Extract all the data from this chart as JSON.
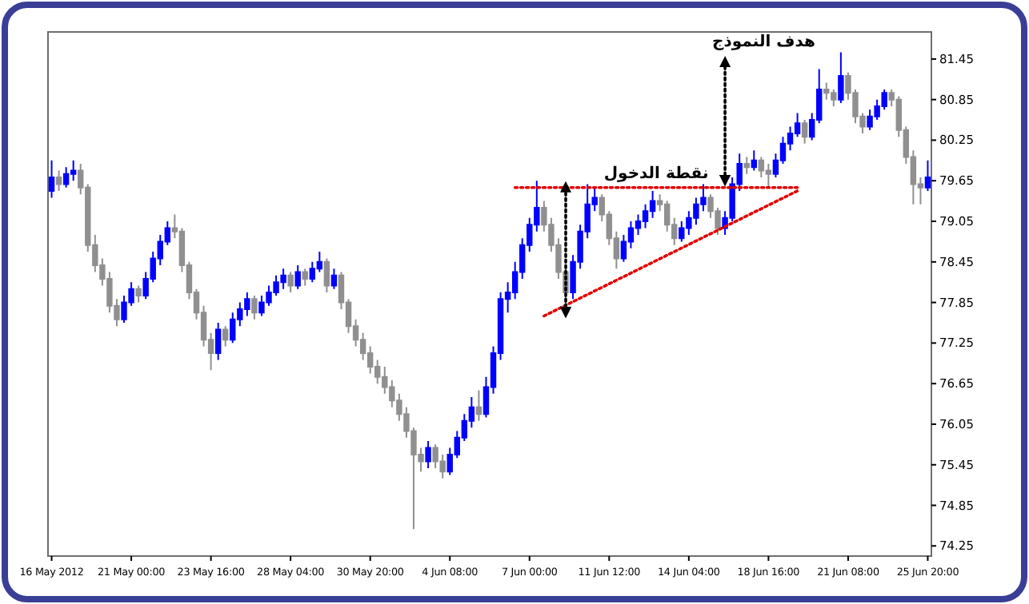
{
  "chart_data": {
    "type": "candlestick",
    "categories": [
      "16 May 2012",
      null,
      null,
      null,
      null,
      null,
      null,
      null,
      null,
      null,
      null,
      "21 May 00:00",
      null,
      null,
      null,
      null,
      null,
      null,
      null,
      null,
      null,
      null,
      "23 May 16:00",
      null,
      null,
      null,
      null,
      null,
      null,
      null,
      null,
      null,
      null,
      "28 May 04:00",
      null,
      null,
      null,
      null,
      null,
      null,
      null,
      null,
      null,
      null,
      "30 May 20:00",
      null,
      null,
      null,
      null,
      null,
      null,
      null,
      null,
      null,
      null,
      "4 Jun 08:00",
      null,
      null,
      null,
      null,
      null,
      null,
      null,
      null,
      null,
      null,
      "7 Jun 00:00",
      null,
      null,
      null,
      null,
      null,
      null,
      null,
      null,
      null,
      null,
      "11 Jun 12:00",
      null,
      null,
      null,
      null,
      null,
      null,
      null,
      null,
      null,
      null,
      "14 Jun 04:00",
      null,
      null,
      null,
      null,
      null,
      null,
      null,
      null,
      null,
      null,
      "18 Jun 16:00",
      null,
      null,
      null,
      null,
      null,
      null,
      null,
      null,
      null,
      null,
      "21 Jun 08:00",
      null,
      null,
      null,
      null,
      null,
      null,
      null,
      null,
      null,
      null,
      "25 Jun 20:00"
    ],
    "ohlc": [
      [
        79.5,
        79.95,
        79.4,
        79.7
      ],
      [
        79.7,
        79.8,
        79.5,
        79.6
      ],
      [
        79.6,
        79.85,
        79.55,
        79.75
      ],
      [
        79.75,
        79.95,
        79.65,
        79.8
      ],
      [
        79.8,
        79.9,
        79.45,
        79.55
      ],
      [
        79.55,
        79.6,
        78.6,
        78.7
      ],
      [
        78.7,
        78.85,
        78.3,
        78.4
      ],
      [
        78.4,
        78.5,
        78.1,
        78.2
      ],
      [
        78.2,
        78.3,
        77.7,
        77.8
      ],
      [
        77.8,
        77.9,
        77.5,
        77.6
      ],
      [
        77.6,
        77.95,
        77.55,
        77.85
      ],
      [
        77.85,
        78.15,
        77.8,
        78.05
      ],
      [
        78.05,
        78.1,
        77.85,
        77.95
      ],
      [
        77.95,
        78.3,
        77.9,
        78.2
      ],
      [
        78.2,
        78.6,
        78.15,
        78.5
      ],
      [
        78.5,
        78.85,
        78.4,
        78.75
      ],
      [
        78.75,
        79.05,
        78.7,
        78.95
      ],
      [
        78.95,
        79.15,
        78.8,
        78.9
      ],
      [
        78.9,
        78.95,
        78.3,
        78.4
      ],
      [
        78.4,
        78.45,
        77.9,
        78.0
      ],
      [
        78.0,
        78.05,
        77.6,
        77.7
      ],
      [
        77.7,
        77.8,
        77.2,
        77.3
      ],
      [
        77.3,
        77.4,
        76.85,
        77.1
      ],
      [
        77.1,
        77.55,
        77.0,
        77.45
      ],
      [
        77.45,
        77.5,
        77.2,
        77.3
      ],
      [
        77.3,
        77.7,
        77.25,
        77.6
      ],
      [
        77.6,
        77.85,
        77.5,
        77.75
      ],
      [
        77.75,
        78.0,
        77.65,
        77.9
      ],
      [
        77.9,
        77.95,
        77.6,
        77.7
      ],
      [
        77.7,
        77.95,
        77.65,
        77.85
      ],
      [
        77.85,
        78.1,
        77.8,
        78.0
      ],
      [
        78.0,
        78.25,
        77.95,
        78.15
      ],
      [
        78.15,
        78.35,
        78.05,
        78.25
      ],
      [
        78.25,
        78.3,
        78.0,
        78.1
      ],
      [
        78.1,
        78.4,
        78.05,
        78.3
      ],
      [
        78.3,
        78.35,
        78.1,
        78.2
      ],
      [
        78.2,
        78.45,
        78.15,
        78.35
      ],
      [
        78.35,
        78.6,
        78.3,
        78.45
      ],
      [
        78.45,
        78.5,
        78.0,
        78.1
      ],
      [
        78.1,
        78.35,
        78.05,
        78.25
      ],
      [
        78.25,
        78.3,
        77.75,
        77.85
      ],
      [
        77.85,
        77.9,
        77.4,
        77.5
      ],
      [
        77.5,
        77.6,
        77.2,
        77.3
      ],
      [
        77.3,
        77.4,
        77.0,
        77.1
      ],
      [
        77.1,
        77.2,
        76.8,
        76.9
      ],
      [
        76.9,
        77.0,
        76.65,
        76.75
      ],
      [
        76.75,
        76.9,
        76.5,
        76.6
      ],
      [
        76.6,
        76.7,
        76.3,
        76.4
      ],
      [
        76.4,
        76.5,
        76.1,
        76.2
      ],
      [
        76.2,
        76.3,
        75.85,
        75.95
      ],
      [
        75.95,
        76.0,
        74.5,
        75.6
      ],
      [
        75.6,
        75.7,
        75.35,
        75.5
      ],
      [
        75.5,
        75.8,
        75.4,
        75.7
      ],
      [
        75.7,
        75.75,
        75.4,
        75.5
      ],
      [
        75.5,
        75.6,
        75.25,
        75.35
      ],
      [
        75.35,
        75.7,
        75.3,
        75.6
      ],
      [
        75.6,
        75.95,
        75.55,
        75.85
      ],
      [
        75.85,
        76.2,
        75.8,
        76.1
      ],
      [
        76.1,
        76.45,
        76.0,
        76.3
      ],
      [
        76.3,
        76.55,
        76.1,
        76.2
      ],
      [
        76.2,
        76.75,
        76.15,
        76.6
      ],
      [
        76.6,
        77.2,
        76.5,
        77.1
      ],
      [
        77.1,
        78.0,
        77.0,
        77.9
      ],
      [
        77.9,
        78.15,
        77.7,
        78.0
      ],
      [
        78.0,
        78.45,
        77.9,
        78.3
      ],
      [
        78.3,
        78.8,
        78.2,
        78.7
      ],
      [
        78.7,
        79.1,
        78.6,
        79.0
      ],
      [
        79.0,
        79.65,
        78.9,
        79.25
      ],
      [
        79.25,
        79.35,
        78.9,
        79.0
      ],
      [
        79.0,
        79.1,
        78.6,
        78.7
      ],
      [
        78.7,
        78.8,
        78.2,
        78.3
      ],
      [
        78.3,
        78.4,
        77.7,
        78.0
      ],
      [
        78.0,
        78.55,
        77.9,
        78.45
      ],
      [
        78.45,
        79.0,
        78.35,
        78.9
      ],
      [
        78.9,
        79.6,
        78.8,
        79.3
      ],
      [
        79.3,
        79.55,
        79.2,
        79.4
      ],
      [
        79.4,
        79.45,
        79.05,
        79.15
      ],
      [
        79.15,
        79.2,
        78.7,
        78.8
      ],
      [
        78.8,
        78.9,
        78.35,
        78.5
      ],
      [
        78.5,
        78.85,
        78.45,
        78.75
      ],
      [
        78.75,
        79.05,
        78.65,
        78.95
      ],
      [
        78.95,
        79.15,
        78.85,
        79.05
      ],
      [
        79.05,
        79.3,
        78.95,
        79.2
      ],
      [
        79.2,
        79.5,
        79.1,
        79.35
      ],
      [
        79.35,
        79.45,
        79.2,
        79.3
      ],
      [
        79.3,
        79.35,
        78.9,
        79.0
      ],
      [
        79.0,
        79.1,
        78.7,
        78.8
      ],
      [
        78.8,
        79.05,
        78.75,
        78.95
      ],
      [
        78.95,
        79.2,
        78.85,
        79.1
      ],
      [
        79.1,
        79.4,
        79.0,
        79.3
      ],
      [
        79.3,
        79.6,
        79.2,
        79.4
      ],
      [
        79.4,
        79.45,
        79.1,
        79.2
      ],
      [
        79.2,
        79.25,
        78.85,
        78.95
      ],
      [
        78.95,
        79.2,
        78.85,
        79.1
      ],
      [
        79.1,
        79.7,
        79.05,
        79.6
      ],
      [
        79.6,
        80.05,
        79.5,
        79.9
      ],
      [
        79.9,
        80.0,
        79.75,
        79.85
      ],
      [
        79.85,
        80.1,
        79.8,
        79.95
      ],
      [
        79.95,
        80.0,
        79.7,
        79.8
      ],
      [
        79.8,
        79.9,
        79.55,
        79.75
      ],
      [
        79.75,
        80.05,
        79.7,
        79.95
      ],
      [
        79.95,
        80.3,
        79.9,
        80.2
      ],
      [
        80.2,
        80.45,
        80.1,
        80.35
      ],
      [
        80.35,
        80.65,
        80.3,
        80.5
      ],
      [
        80.5,
        80.55,
        80.2,
        80.3
      ],
      [
        80.3,
        80.65,
        80.25,
        80.55
      ],
      [
        80.55,
        81.3,
        80.5,
        81.0
      ],
      [
        81.0,
        81.1,
        80.85,
        80.95
      ],
      [
        80.95,
        81.0,
        80.75,
        80.85
      ],
      [
        80.85,
        81.55,
        80.8,
        81.2
      ],
      [
        81.2,
        81.25,
        80.85,
        80.95
      ],
      [
        80.95,
        81.0,
        80.5,
        80.6
      ],
      [
        80.6,
        80.65,
        80.35,
        80.45
      ],
      [
        80.45,
        80.7,
        80.4,
        80.6
      ],
      [
        80.6,
        80.85,
        80.55,
        80.75
      ],
      [
        80.75,
        81.0,
        80.7,
        80.95
      ],
      [
        80.95,
        81.0,
        80.75,
        80.85
      ],
      [
        80.85,
        80.9,
        80.3,
        80.4
      ],
      [
        80.4,
        80.45,
        79.9,
        80.0
      ],
      [
        80.0,
        80.1,
        79.3,
        79.6
      ],
      [
        79.6,
        79.7,
        79.3,
        79.55
      ],
      [
        79.55,
        79.95,
        79.5,
        79.7
      ]
    ],
    "colors": [
      "#0000ff",
      "#909090",
      "#0000ff",
      "#0000ff",
      "#909090",
      "#909090",
      "#909090",
      "#909090",
      "#909090",
      "#909090",
      "#0000ff",
      "#0000ff",
      "#909090",
      "#0000ff",
      "#0000ff",
      "#0000ff",
      "#0000ff",
      "#909090",
      "#909090",
      "#909090",
      "#909090",
      "#909090",
      "#909090",
      "#0000ff",
      "#909090",
      "#0000ff",
      "#0000ff",
      "#0000ff",
      "#909090",
      "#0000ff",
      "#0000ff",
      "#0000ff",
      "#0000ff",
      "#909090",
      "#0000ff",
      "#909090",
      "#0000ff",
      "#0000ff",
      "#909090",
      "#0000ff",
      "#909090",
      "#909090",
      "#909090",
      "#909090",
      "#909090",
      "#909090",
      "#909090",
      "#909090",
      "#909090",
      "#909090",
      "#909090",
      "#909090",
      "#0000ff",
      "#909090",
      "#909090",
      "#0000ff",
      "#0000ff",
      "#0000ff",
      "#0000ff",
      "#909090",
      "#0000ff",
      "#0000ff",
      "#0000ff",
      "#0000ff",
      "#0000ff",
      "#0000ff",
      "#0000ff",
      "#0000ff",
      "#909090",
      "#909090",
      "#909090",
      "#909090",
      "#0000ff",
      "#0000ff",
      "#0000ff",
      "#0000ff",
      "#909090",
      "#909090",
      "#909090",
      "#0000ff",
      "#0000ff",
      "#0000ff",
      "#0000ff",
      "#0000ff",
      "#909090",
      "#909090",
      "#909090",
      "#0000ff",
      "#0000ff",
      "#0000ff",
      "#0000ff",
      "#909090",
      "#909090",
      "#0000ff",
      "#0000ff",
      "#0000ff",
      "#909090",
      "#0000ff",
      "#909090",
      "#909090",
      "#0000ff",
      "#0000ff",
      "#0000ff",
      "#0000ff",
      "#909090",
      "#0000ff",
      "#0000ff",
      "#909090",
      "#909090",
      "#0000ff",
      "#909090",
      "#909090",
      "#909090",
      "#0000ff",
      "#0000ff",
      "#0000ff",
      "#909090",
      "#909090",
      "#909090",
      "#909090",
      "#909090",
      "#0000ff"
    ],
    "series": [
      {
        "type": "line",
        "name": "نقطة الدخول",
        "color": "#e00000",
        "line_style": "dotted",
        "values": [
          null,
          null,
          null,
          null,
          null,
          null,
          null,
          null,
          null,
          null,
          null,
          null,
          null,
          null,
          null,
          null,
          null,
          null,
          null,
          null,
          null,
          null,
          null,
          null,
          null,
          null,
          null,
          null,
          null,
          null,
          null,
          null,
          null,
          null,
          null,
          null,
          null,
          null,
          null,
          null,
          null,
          null,
          null,
          null,
          null,
          null,
          null,
          null,
          null,
          null,
          null,
          null,
          null,
          null,
          null,
          null,
          null,
          null,
          null,
          null,
          null,
          null,
          null,
          null,
          79.55,
          null,
          null,
          null,
          null,
          null,
          null,
          null,
          null,
          null,
          null,
          null,
          null,
          null,
          null,
          null,
          null,
          null,
          null,
          null,
          null,
          null,
          null,
          null,
          null,
          null,
          null,
          null,
          null,
          null,
          null,
          null,
          null,
          null,
          null,
          null,
          null,
          null,
          null,
          79.55,
          null,
          null,
          null,
          null,
          null,
          null,
          null,
          null,
          null,
          null,
          null,
          null,
          null,
          null,
          null,
          null,
          null,
          null
        ]
      },
      {
        "type": "line",
        "color": "#e00000",
        "line_style": "dotted",
        "values": [
          null,
          null,
          null,
          null,
          null,
          null,
          null,
          null,
          null,
          null,
          null,
          null,
          null,
          null,
          null,
          null,
          null,
          null,
          null,
          null,
          null,
          null,
          null,
          null,
          null,
          null,
          null,
          null,
          null,
          null,
          null,
          null,
          null,
          null,
          null,
          null,
          null,
          null,
          null,
          null,
          null,
          null,
          null,
          null,
          null,
          null,
          null,
          null,
          null,
          null,
          null,
          null,
          null,
          null,
          null,
          null,
          null,
          null,
          null,
          null,
          null,
          null,
          null,
          null,
          null,
          null,
          null,
          null,
          77.65,
          null,
          null,
          null,
          null,
          null,
          null,
          null,
          null,
          null,
          null,
          null,
          null,
          null,
          null,
          null,
          null,
          null,
          null,
          null,
          null,
          null,
          null,
          null,
          null,
          null,
          null,
          null,
          null,
          null,
          null,
          null,
          null,
          null,
          null,
          79.5,
          null,
          null,
          null,
          null,
          null,
          null,
          null,
          null,
          null,
          null,
          null,
          null,
          null,
          null,
          null,
          null,
          null,
          null
        ]
      },
      {
        "type": "line",
        "color": "#000000",
        "line_style": "dotted",
        "marker": "triangle",
        "values": [
          null,
          null,
          null,
          null,
          null,
          null,
          null,
          null,
          null,
          null,
          null,
          null,
          null,
          null,
          null,
          null,
          null,
          null,
          null,
          null,
          null,
          null,
          null,
          null,
          null,
          null,
          null,
          null,
          null,
          null,
          null,
          null,
          null,
          null,
          null,
          null,
          null,
          null,
          null,
          null,
          null,
          null,
          null,
          null,
          null,
          null,
          null,
          null,
          null,
          null,
          null,
          null,
          null,
          null,
          null,
          null,
          null,
          null,
          null,
          null,
          null,
          null,
          null,
          null,
          null,
          null,
          null,
          null,
          null,
          null,
          null,
          79.55,
          null,
          null,
          null,
          null,
          null,
          null,
          null,
          null,
          null,
          null,
          null,
          null,
          null,
          null,
          null,
          null,
          null,
          null,
          null,
          null,
          null,
          null,
          null,
          null,
          null,
          null,
          null,
          null,
          null,
          null,
          null,
          null,
          null,
          null,
          null,
          null,
          null,
          null,
          null,
          null,
          null,
          null,
          null,
          null,
          null,
          null,
          null,
          null,
          null,
          null
        ],
        "errors": [
          null,
          null,
          null,
          null,
          null,
          null,
          null,
          null,
          null,
          null,
          null,
          null,
          null,
          null,
          null,
          null,
          null,
          null,
          null,
          null,
          null,
          null,
          null,
          null,
          null,
          null,
          null,
          null,
          null,
          null,
          null,
          null,
          null,
          null,
          null,
          null,
          null,
          null,
          null,
          null,
          null,
          null,
          null,
          null,
          null,
          null,
          null,
          null,
          null,
          null,
          null,
          null,
          null,
          null,
          null,
          null,
          null,
          null,
          null,
          null,
          null,
          null,
          null,
          null,
          null,
          null,
          null,
          null,
          null,
          null,
          null,
          [
            77.7,
            79.55
          ],
          null,
          null,
          null,
          null,
          null,
          null,
          null,
          null,
          null,
          null,
          null,
          null,
          null,
          null,
          null,
          null,
          null,
          null,
          null,
          null,
          null,
          null,
          null,
          null,
          null,
          null,
          null,
          null,
          null,
          null,
          null,
          null,
          null,
          null,
          null,
          null,
          null,
          null,
          null,
          null,
          null,
          null,
          null,
          null,
          null,
          null,
          null,
          null,
          null,
          null
        ]
      },
      {
        "type": "line",
        "name": "هدف النموذج",
        "color": "#000000",
        "line_style": "dotted",
        "marker": "triangle",
        "values": [
          null,
          null,
          null,
          null,
          null,
          null,
          null,
          null,
          null,
          null,
          null,
          null,
          null,
          null,
          null,
          null,
          null,
          null,
          null,
          null,
          null,
          null,
          null,
          null,
          null,
          null,
          null,
          null,
          null,
          null,
          null,
          null,
          null,
          null,
          null,
          null,
          null,
          null,
          null,
          null,
          null,
          null,
          null,
          null,
          null,
          null,
          null,
          null,
          null,
          null,
          null,
          null,
          null,
          null,
          null,
          null,
          null,
          null,
          null,
          null,
          null,
          null,
          null,
          null,
          null,
          null,
          null,
          null,
          null,
          null,
          null,
          null,
          null,
          null,
          null,
          null,
          null,
          null,
          null,
          null,
          null,
          null,
          null,
          null,
          null,
          null,
          null,
          null,
          null,
          null,
          null,
          null,
          null,
          81.4,
          null,
          null,
          null,
          null,
          null,
          null,
          null,
          null,
          null,
          null,
          null,
          null,
          null,
          null,
          null,
          null,
          null,
          null,
          null,
          null,
          null,
          null,
          null,
          null,
          null,
          null,
          null,
          null
        ],
        "errors": [
          null,
          null,
          null,
          null,
          null,
          null,
          null,
          null,
          null,
          null,
          null,
          null,
          null,
          null,
          null,
          null,
          null,
          null,
          null,
          null,
          null,
          null,
          null,
          null,
          null,
          null,
          null,
          null,
          null,
          null,
          null,
          null,
          null,
          null,
          null,
          null,
          null,
          null,
          null,
          null,
          null,
          null,
          null,
          null,
          null,
          null,
          null,
          null,
          null,
          null,
          null,
          null,
          null,
          null,
          null,
          null,
          null,
          null,
          null,
          null,
          null,
          null,
          null,
          null,
          null,
          null,
          null,
          null,
          null,
          null,
          null,
          null,
          null,
          null,
          null,
          null,
          null,
          null,
          null,
          null,
          null,
          null,
          null,
          null,
          null,
          null,
          null,
          null,
          null,
          null,
          null,
          null,
          null,
          [
            79.65,
            81.4
          ],
          null,
          null,
          null,
          null,
          null,
          null,
          null,
          null,
          null,
          null,
          null,
          null,
          null,
          null,
          null,
          null,
          null,
          null,
          null,
          null,
          null,
          null,
          null,
          null,
          null,
          null,
          null,
          null
        ]
      }
    ],
    "ylim": [
      74.1,
      81.85
    ],
    "yticks": [
      74.25,
      74.85,
      75.45,
      76.05,
      76.65,
      77.25,
      77.85,
      78.45,
      79.05,
      79.65,
      80.25,
      80.85,
      81.45
    ]
  }
}
